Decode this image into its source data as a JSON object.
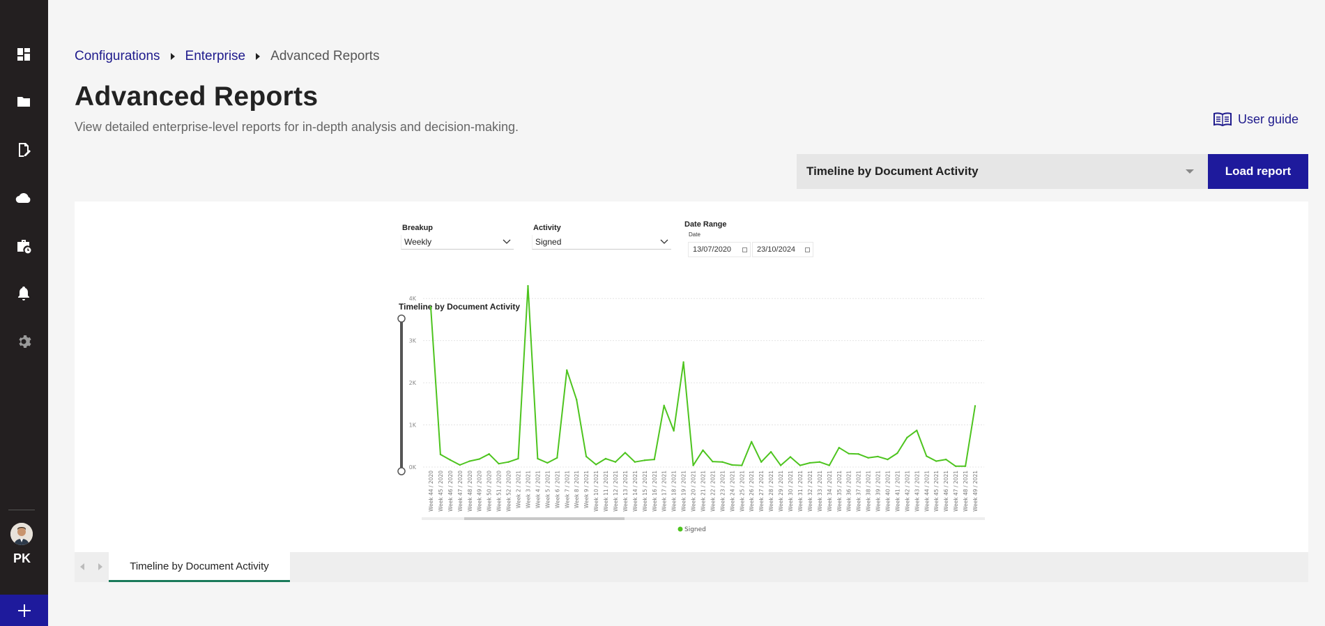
{
  "sidebar": {
    "items": [
      {
        "name": "dashboard-icon"
      },
      {
        "name": "folder-icon"
      },
      {
        "name": "edit-document-icon"
      },
      {
        "name": "cloud-icon"
      },
      {
        "name": "briefcase-clock-icon"
      },
      {
        "name": "bell-icon"
      },
      {
        "name": "gear-icon"
      }
    ],
    "user_initials": "PK",
    "accent_color": "#1e1a9c"
  },
  "breadcrumb": {
    "items": [
      "Configurations",
      "Enterprise",
      "Advanced Reports"
    ]
  },
  "header": {
    "title": "Advanced Reports",
    "subtitle": "View detailed enterprise-level reports for in-depth analysis and decision-making.",
    "user_guide_label": "User guide"
  },
  "report_picker": {
    "selected": "Timeline by Document Activity",
    "load_label": "Load report"
  },
  "filters": {
    "breakup_label": "Breakup",
    "breakup_value": "Weekly",
    "activity_label": "Activity",
    "activity_value": "Signed",
    "date_range_label": "Date Range",
    "date_label": "Date",
    "date_from": "13/07/2020",
    "date_to": "23/10/2024"
  },
  "report_tabs": {
    "active": "Timeline by Document Activity"
  },
  "chart_data": {
    "type": "line",
    "title": "Timeline by Document Activity",
    "y_ticks": [
      "0K",
      "1K",
      "2K",
      "3K",
      "4K"
    ],
    "ylim": [
      0,
      4500
    ],
    "grid": true,
    "legend_position": "bottom-center",
    "categories": [
      "Week 44 / 2020",
      "Week 45 / 2020",
      "Week 46 / 2020",
      "Week 47 / 2020",
      "Week 48 / 2020",
      "Week 49 / 2020",
      "Week 50 / 2020",
      "Week 51 / 2020",
      "Week 52 / 2020",
      "Week 2 / 2021",
      "Week 3 / 2021",
      "Week 4 / 2021",
      "Week 5 / 2021",
      "Week 6 / 2021",
      "Week 7 / 2021",
      "Week 8 / 2021",
      "Week 9 / 2021",
      "Week 10 / 2021",
      "Week 11 / 2021",
      "Week 12 / 2021",
      "Week 13 / 2021",
      "Week 14 / 2021",
      "Week 15 / 2021",
      "Week 16 / 2021",
      "Week 17 / 2021",
      "Week 18 / 2021",
      "Week 19 / 2021",
      "Week 20 / 2021",
      "Week 21 / 2021",
      "Week 22 / 2021",
      "Week 23 / 2021",
      "Week 24 / 2021",
      "Week 25 / 2021",
      "Week 26 / 2021",
      "Week 27 / 2021",
      "Week 28 / 2021",
      "Week 29 / 2021",
      "Week 30 / 2021",
      "Week 31 / 2021",
      "Week 32 / 2021",
      "Week 33 / 2021",
      "Week 34 / 2021",
      "Week 35 / 2021",
      "Week 36 / 2021",
      "Week 37 / 2021",
      "Week 38 / 2021",
      "Week 39 / 2021",
      "Week 40 / 2021",
      "Week 41 / 2021",
      "Week 42 / 2021",
      "Week 43 / 2021",
      "Week 44 / 2021",
      "Week 45 / 2021",
      "Week 46 / 2021",
      "Week 47 / 2021",
      "Week 48 / 2021",
      "Week 49 / 2021"
    ],
    "series": [
      {
        "name": "Signed",
        "color": "#4dc41e",
        "values": [
          3800,
          300,
          170,
          50,
          140,
          190,
          310,
          80,
          120,
          200,
          4300,
          200,
          100,
          220,
          2300,
          1600,
          250,
          60,
          200,
          120,
          340,
          120,
          160,
          180,
          1460,
          860,
          2490,
          40,
          400,
          130,
          120,
          50,
          40,
          600,
          120,
          360,
          40,
          240,
          40,
          100,
          120,
          40,
          460,
          320,
          310,
          220,
          250,
          180,
          330,
          700,
          870,
          260,
          140,
          180,
          20,
          20,
          1450
        ]
      }
    ]
  }
}
